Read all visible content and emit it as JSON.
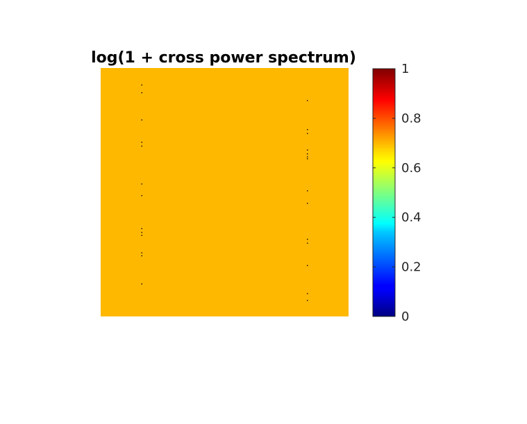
{
  "chart_data": {
    "type": "heatmap",
    "title": "log(1 + cross power spectrum)",
    "xlabel": "",
    "ylabel": "",
    "grid": false,
    "image": {
      "rows": 256,
      "cols": 256,
      "background_value": 0.67,
      "background_color": "#ffb800",
      "low_value_points": [
        {
          "row": 17,
          "col": 42,
          "value": 0.0
        },
        {
          "row": 25,
          "col": 42,
          "value": 0.0
        },
        {
          "row": 33,
          "col": 213,
          "value": 0.0
        },
        {
          "row": 53,
          "col": 42,
          "value": 0.0
        },
        {
          "row": 63,
          "col": 213,
          "value": 0.0
        },
        {
          "row": 67,
          "col": 213,
          "value": 0.0
        },
        {
          "row": 76,
          "col": 42,
          "value": 0.0
        },
        {
          "row": 80,
          "col": 42,
          "value": 0.0
        },
        {
          "row": 84,
          "col": 213,
          "value": 0.0
        },
        {
          "row": 88,
          "col": 213,
          "value": 0.0
        },
        {
          "row": 91,
          "col": 213,
          "value": 0.0
        },
        {
          "row": 93,
          "col": 213,
          "value": 0.0
        },
        {
          "row": 119,
          "col": 42,
          "value": 0.0
        },
        {
          "row": 126,
          "col": 213,
          "value": 0.0
        },
        {
          "row": 131,
          "col": 42,
          "value": 0.0
        },
        {
          "row": 139,
          "col": 213,
          "value": 0.0
        },
        {
          "row": 165,
          "col": 42,
          "value": 0.0
        },
        {
          "row": 169,
          "col": 42,
          "value": 0.0
        },
        {
          "row": 172,
          "col": 42,
          "value": 0.0
        },
        {
          "row": 176,
          "col": 213,
          "value": 0.0
        },
        {
          "row": 180,
          "col": 213,
          "value": 0.0
        },
        {
          "row": 190,
          "col": 42,
          "value": 0.0
        },
        {
          "row": 193,
          "col": 42,
          "value": 0.0
        },
        {
          "row": 203,
          "col": 213,
          "value": 0.0
        },
        {
          "row": 222,
          "col": 42,
          "value": 0.0
        },
        {
          "row": 232,
          "col": 213,
          "value": 0.0
        },
        {
          "row": 239,
          "col": 213,
          "value": 0.0
        }
      ]
    },
    "colorbar": {
      "colormap": "jet",
      "range": [
        0,
        1
      ],
      "ticks": [
        0,
        0.2,
        0.4,
        0.6,
        0.8,
        1
      ],
      "tick_labels": [
        "0",
        "0.2",
        "0.4",
        "0.6",
        "0.8",
        "1"
      ]
    }
  }
}
